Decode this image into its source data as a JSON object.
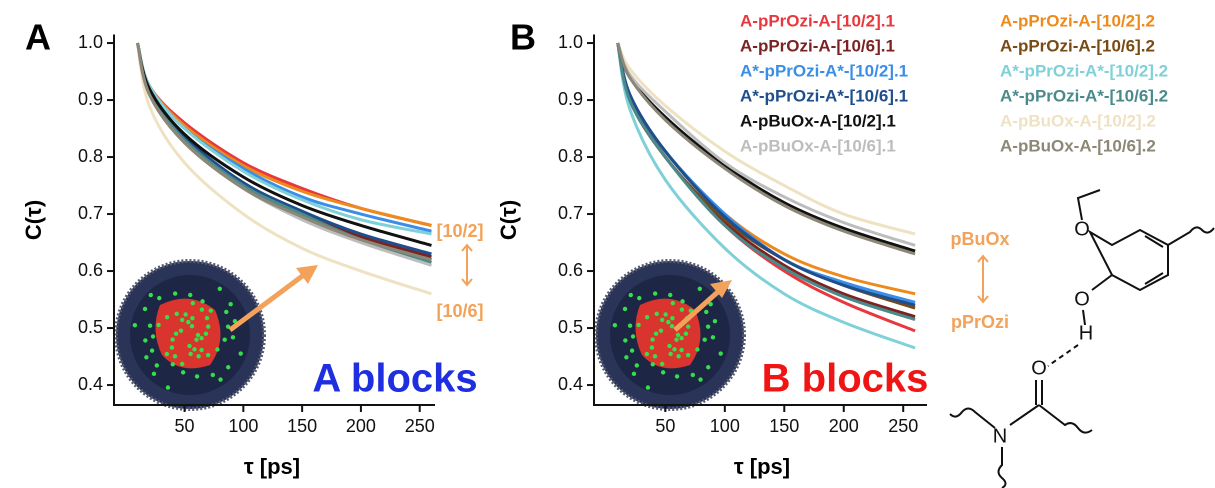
{
  "chart_data": [
    {
      "type": "line",
      "panel": "A",
      "ylabel": "C(τ)",
      "xlabel": "τ [ps]",
      "annotations": [
        "[10/2]",
        "[10/6]",
        "A blocks"
      ],
      "x": [
        10,
        20,
        50,
        100,
        150,
        200,
        260
      ],
      "xlim": [
        -10,
        263
      ],
      "ylim": [
        0.365,
        1.015
      ],
      "xticks": [
        50,
        100,
        150,
        200,
        250
      ],
      "yticks": [
        {
          "value": 0.4,
          "label": "0.4"
        },
        0.5,
        0.6,
        0.7,
        0.8,
        0.9,
        {
          "value": 1,
          "label": "1.0"
        }
      ],
      "series": [
        {
          "color": "#e8383d",
          "values": [
            1,
            0.925,
            0.86,
            0.79,
            0.745,
            0.71,
            0.68
          ]
        },
        {
          "color": "#ee8a1c",
          "values": [
            1,
            0.925,
            0.855,
            0.785,
            0.74,
            0.71,
            0.68
          ]
        },
        {
          "color": "#7b2323",
          "values": [
            1,
            0.915,
            0.83,
            0.75,
            0.7,
            0.66,
            0.625
          ]
        },
        {
          "color": "#7a4a14",
          "values": [
            1,
            0.915,
            0.83,
            0.75,
            0.695,
            0.655,
            0.62
          ]
        },
        {
          "color": "#3b8ee8",
          "values": [
            1,
            0.925,
            0.85,
            0.78,
            0.73,
            0.7,
            0.67
          ]
        },
        {
          "color": "#7fd0d8",
          "values": [
            1,
            0.925,
            0.85,
            0.775,
            0.725,
            0.69,
            0.665
          ]
        },
        {
          "color": "#1f4e8c",
          "values": [
            1,
            0.915,
            0.835,
            0.755,
            0.705,
            0.665,
            0.63
          ]
        },
        {
          "color": "#4a8a8a",
          "values": [
            1,
            0.915,
            0.83,
            0.75,
            0.7,
            0.655,
            0.615
          ]
        },
        {
          "color": "#111111",
          "values": [
            1,
            0.92,
            0.84,
            0.765,
            0.715,
            0.68,
            0.645
          ]
        },
        {
          "color": "#efe2c3",
          "values": [
            1,
            0.89,
            0.79,
            0.7,
            0.64,
            0.6,
            0.56
          ]
        },
        {
          "color": "#bdbdbd",
          "values": [
            1,
            0.91,
            0.825,
            0.745,
            0.69,
            0.65,
            0.61
          ]
        },
        {
          "color": "#8c8776",
          "values": [
            1,
            0.91,
            0.825,
            0.745,
            0.695,
            0.655,
            0.62
          ]
        }
      ]
    },
    {
      "type": "line",
      "panel": "B",
      "ylabel": "C(τ)",
      "xlabel": "τ [ps]",
      "annotations": [
        "pBuOx",
        "pPrOzi",
        "B blocks"
      ],
      "x": [
        10,
        20,
        50,
        100,
        150,
        200,
        260
      ],
      "xlim": [
        -10,
        270
      ],
      "ylim": [
        0.365,
        1.015
      ],
      "xticks": [
        50,
        100,
        150,
        200,
        250
      ],
      "yticks": [
        {
          "value": 0.4,
          "label": "0.4"
        },
        0.5,
        0.6,
        0.7,
        0.8,
        0.9,
        {
          "value": 1,
          "label": "1.0"
        }
      ],
      "series": [
        {
          "name": "A-pPrOzi-A-[10/2].1",
          "color": "#e8383d",
          "values": [
            1,
            0.9,
            0.8,
            0.68,
            0.6,
            0.545,
            0.495
          ]
        },
        {
          "name": "A-pPrOzi-A-[10/2].2",
          "color": "#ee8a1c",
          "values": [
            1,
            0.91,
            0.81,
            0.7,
            0.63,
            0.59,
            0.56
          ]
        },
        {
          "name": "A-pPrOzi-A-[10/6].1",
          "color": "#7b2323",
          "values": [
            1,
            0.9,
            0.8,
            0.685,
            0.61,
            0.56,
            0.52
          ]
        },
        {
          "name": "A-pPrOzi-A-[10/6].2",
          "color": "#7a4a14",
          "values": [
            1,
            0.91,
            0.8,
            0.69,
            0.62,
            0.575,
            0.535
          ]
        },
        {
          "name": "A*-pPrOzi-A*-[10/2].1",
          "color": "#3b8ee8",
          "values": [
            1,
            0.91,
            0.81,
            0.7,
            0.62,
            0.58,
            0.545
          ]
        },
        {
          "name": "A*-pPrOzi-A*-[10/2].2",
          "color": "#7fd0d8",
          "values": [
            1,
            0.885,
            0.76,
            0.64,
            0.56,
            0.51,
            0.465
          ]
        },
        {
          "name": "A*-pPrOzi-A*-[10/6].1",
          "color": "#1f4e8c",
          "values": [
            1,
            0.91,
            0.81,
            0.695,
            0.62,
            0.575,
            0.54
          ]
        },
        {
          "name": "A*-pPrOzi-A*-[10/6].2",
          "color": "#4a8a8a",
          "values": [
            1,
            0.9,
            0.8,
            0.68,
            0.605,
            0.555,
            0.515
          ]
        },
        {
          "name": "A-pBuOx-A-[10/2].1",
          "color": "#111111",
          "values": [
            1,
            0.94,
            0.87,
            0.785,
            0.72,
            0.675,
            0.635
          ]
        },
        {
          "name": "A-pBuOx-A-[10/2].2",
          "color": "#efe2c3",
          "values": [
            1,
            0.955,
            0.89,
            0.81,
            0.75,
            0.7,
            0.665
          ]
        },
        {
          "name": "A-pBuOx-A-[10/6].1",
          "color": "#bdbdbd",
          "values": [
            1,
            0.945,
            0.88,
            0.79,
            0.73,
            0.685,
            0.645
          ]
        },
        {
          "name": "A-pBuOx-A-[10/6].2",
          "color": "#8c8776",
          "values": [
            1,
            0.94,
            0.865,
            0.78,
            0.715,
            0.67,
            0.63
          ]
        }
      ]
    }
  ],
  "structure": {
    "atoms": [
      "O",
      "O",
      "H",
      "O",
      "N"
    ]
  }
}
